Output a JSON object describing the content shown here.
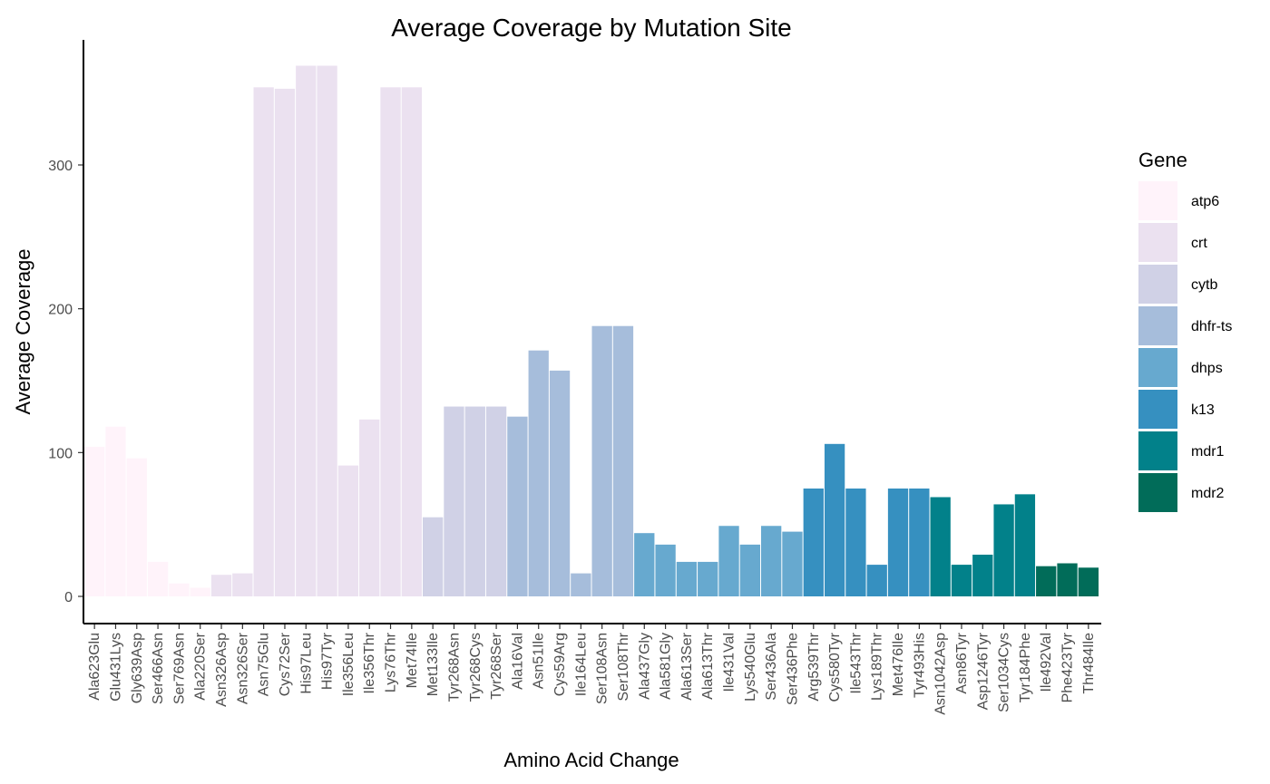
{
  "chart_data": {
    "type": "bar",
    "title": "Average Coverage by Mutation Site",
    "xlabel": "Amino Acid Change",
    "ylabel": "Average Coverage",
    "ylim": [
      0,
      385
    ],
    "yticks": [
      0,
      100,
      200,
      300
    ],
    "grid": false,
    "legend": {
      "title": "Gene",
      "position": "right"
    },
    "genes": [
      {
        "name": "atp6",
        "color": "#fff3fa"
      },
      {
        "name": "crt",
        "color": "#ebe1f0"
      },
      {
        "name": "cytb",
        "color": "#d0d1e6"
      },
      {
        "name": "dhfr-ts",
        "color": "#a6bddb"
      },
      {
        "name": "dhps",
        "color": "#67a9cf"
      },
      {
        "name": "k13",
        "color": "#3690c0"
      },
      {
        "name": "mdr1",
        "color": "#02818a"
      },
      {
        "name": "mdr2",
        "color": "#016c59"
      }
    ],
    "categories": [
      "Ala623Glu",
      "Glu431Lys",
      "Gly639Asp",
      "Ser466Asn",
      "Ser769Asn",
      "Ala220Ser",
      "Asn326Asp",
      "Asn326Ser",
      "Asn75Glu",
      "Cys72Ser",
      "His97Leu",
      "His97Tyr",
      "Ile356Leu",
      "Ile356Thr",
      "Lys76Thr",
      "Met74Ile",
      "Met133Ile",
      "Tyr268Asn",
      "Tyr268Cys",
      "Tyr268Ser",
      "Ala16Val",
      "Asn51Ile",
      "Cys59Arg",
      "Ile164Leu",
      "Ser108Asn",
      "Ser108Thr",
      "Ala437Gly",
      "Ala581Gly",
      "Ala613Ser",
      "Ala613Thr",
      "Ile431Val",
      "Lys540Glu",
      "Ser436Ala",
      "Ser436Phe",
      "Arg539Thr",
      "Cys580Tyr",
      "Ile543Thr",
      "Lys189Thr",
      "Met476Ile",
      "Tyr493His",
      "Asn1042Asp",
      "Asn86Tyr",
      "Asp1246Tyr",
      "Ser1034Cys",
      "Tyr184Phe",
      "Ile492Val",
      "Phe423Tyr",
      "Thr484Ile"
    ],
    "values": [
      104,
      118,
      96,
      24,
      9,
      6,
      15,
      16,
      354,
      353,
      369,
      369,
      91,
      123,
      354,
      354,
      55,
      132,
      132,
      132,
      125,
      171,
      157,
      16,
      188,
      188,
      44,
      36,
      24,
      24,
      49,
      36,
      49,
      45,
      75,
      106,
      75,
      22,
      75,
      75,
      69,
      22,
      29,
      64,
      71,
      21,
      23,
      20
    ],
    "gene_of_bar": [
      "atp6",
      "atp6",
      "atp6",
      "atp6",
      "atp6",
      "atp6",
      "crt",
      "crt",
      "crt",
      "crt",
      "crt",
      "crt",
      "crt",
      "crt",
      "crt",
      "crt",
      "cytb",
      "cytb",
      "cytb",
      "cytb",
      "dhfr-ts",
      "dhfr-ts",
      "dhfr-ts",
      "dhfr-ts",
      "dhfr-ts",
      "dhfr-ts",
      "dhps",
      "dhps",
      "dhps",
      "dhps",
      "dhps",
      "dhps",
      "dhps",
      "dhps",
      "k13",
      "k13",
      "k13",
      "k13",
      "k13",
      "k13",
      "mdr1",
      "mdr1",
      "mdr1",
      "mdr1",
      "mdr1",
      "mdr2",
      "mdr2",
      "mdr2"
    ]
  }
}
